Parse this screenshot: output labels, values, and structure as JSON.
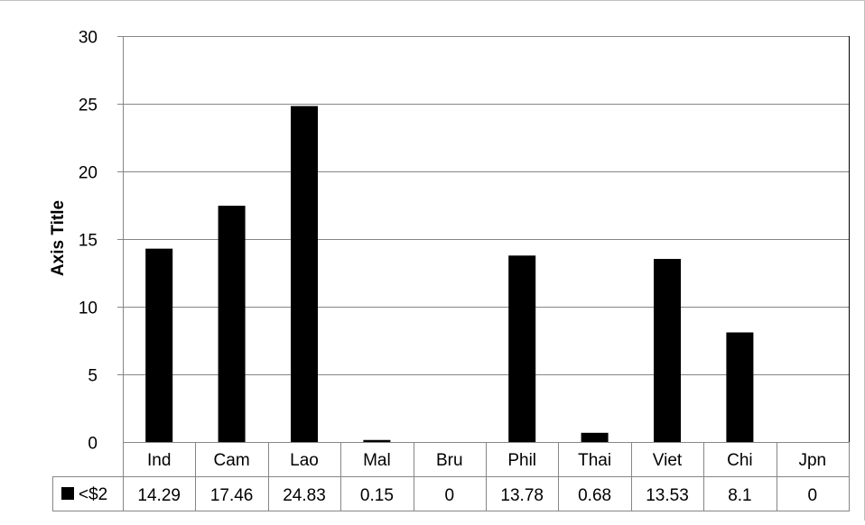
{
  "chart_data": {
    "type": "bar",
    "title": "",
    "xlabel": "",
    "ylabel": "Axis Title",
    "ylim": [
      0,
      30
    ],
    "yticks": [
      0,
      5,
      10,
      15,
      20,
      25,
      30
    ],
    "grid": true,
    "legend": "data-table-left",
    "categories": [
      "Ind",
      "Cam",
      "Lao",
      "Mal",
      "Bru",
      "Phil",
      "Thai",
      "Viet",
      "Chi",
      "Jpn"
    ],
    "series": [
      {
        "name": "<$2",
        "color": "#000000",
        "values": [
          14.29,
          17.46,
          24.83,
          0.15,
          0,
          13.78,
          0.68,
          13.53,
          8.1,
          0
        ],
        "labels": [
          "14.29",
          "17.46",
          "24.83",
          "0.15",
          "0",
          "13.78",
          "0.68",
          "13.53",
          "8.1",
          "0"
        ]
      }
    ]
  }
}
